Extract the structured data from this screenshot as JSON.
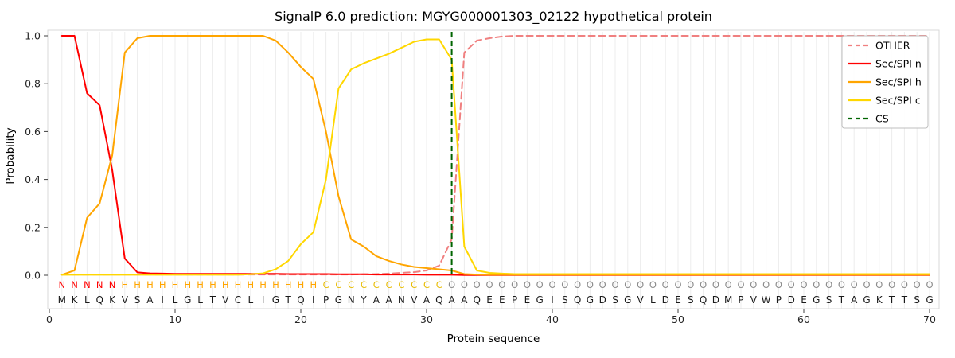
{
  "title": "SignalP 6.0 prediction: MGYG000001303_02122 hypothetical protein",
  "chart_data": {
    "type": "line",
    "xlabel": "Protein sequence",
    "ylabel": "Probability",
    "xticks": [
      0,
      10,
      20,
      30,
      40,
      50,
      60,
      70
    ],
    "yticks": [
      0,
      0.2,
      0.4,
      0.6,
      0.8,
      1.0
    ],
    "ylim": [
      0,
      1.05
    ],
    "x_start": 1,
    "cs_position": 32,
    "cs_color": "#006400",
    "sequence": "MKLQKVSAILGLTVCLIGTQIPGNYAANVAQAAQEEPEGISQGDSGVLDESQDMPVWPDEGSTAGKTTSG",
    "region_labels": "NNNNNHHHHHHHHHHHHHHHHCCCCCCCCCCOOOOOOOOOOOOOOOOOOOOOOOOOOOOOOOOOOOOOOO",
    "region_colors": {
      "N": "#ff0000",
      "H": "#ffa500",
      "C": "#e8bc00",
      "O": "#8c8c8c"
    },
    "series": [
      {
        "name": "OTHER",
        "color": "#f08080",
        "dash": true,
        "values": [
          0.003,
          0.003,
          0.003,
          0.003,
          0.003,
          0.003,
          0.003,
          0.003,
          0.003,
          0.003,
          0.003,
          0.003,
          0.003,
          0.003,
          0.003,
          0.003,
          0.003,
          0.003,
          0.003,
          0.003,
          0.003,
          0.003,
          0.003,
          0.003,
          0.004,
          0.005,
          0.007,
          0.01,
          0.013,
          0.02,
          0.04,
          0.15,
          0.93,
          0.98,
          0.99,
          0.997,
          1.0,
          1.0,
          1.0,
          1.0,
          1.0,
          1.0,
          1.0,
          1.0,
          1.0,
          1.0,
          1.0,
          1.0,
          1.0,
          1.0,
          1.0,
          1.0,
          1.0,
          1.0,
          1.0,
          1.0,
          1.0,
          1.0,
          1.0,
          1.0,
          1.0,
          1.0,
          1.0,
          1.0,
          1.0,
          1.0,
          1.0,
          1.0,
          1.0,
          1.0
        ]
      },
      {
        "name": "Sec/SPI n",
        "color": "#ff0000",
        "dash": false,
        "values": [
          1.0,
          1.0,
          0.76,
          0.71,
          0.44,
          0.07,
          0.012,
          0.008,
          0.007,
          0.006,
          0.006,
          0.006,
          0.006,
          0.006,
          0.006,
          0.006,
          0.006,
          0.006,
          0.005,
          0.005,
          0.005,
          0.005,
          0.004,
          0.004,
          0.004,
          0.003,
          0.003,
          0.003,
          0.003,
          0.002,
          0.002,
          0.002,
          0.001,
          0.001,
          0.001,
          0.001,
          0.001,
          0.001,
          0.001,
          0.001,
          0.001,
          0.001,
          0.001,
          0.001,
          0.001,
          0.001,
          0.001,
          0.001,
          0.001,
          0.001,
          0.001,
          0.001,
          0.001,
          0.001,
          0.001,
          0.001,
          0.001,
          0.001,
          0.001,
          0.001,
          0.001,
          0.001,
          0.001,
          0.001,
          0.001,
          0.001,
          0.001,
          0.001,
          0.001,
          0.001
        ]
      },
      {
        "name": "Sec/SPI h",
        "color": "#ffa500",
        "dash": false,
        "values": [
          0.002,
          0.02,
          0.24,
          0.3,
          0.5,
          0.93,
          0.99,
          1.0,
          1.0,
          1.0,
          1.0,
          1.0,
          1.0,
          1.0,
          1.0,
          1.0,
          1.0,
          0.98,
          0.93,
          0.87,
          0.82,
          0.6,
          0.33,
          0.15,
          0.12,
          0.08,
          0.06,
          0.045,
          0.035,
          0.03,
          0.025,
          0.02,
          0.005,
          0.003,
          0.002,
          0.002,
          0.002,
          0.002,
          0.002,
          0.002,
          0.002,
          0.002,
          0.002,
          0.002,
          0.002,
          0.002,
          0.002,
          0.002,
          0.002,
          0.002,
          0.002,
          0.002,
          0.002,
          0.002,
          0.002,
          0.002,
          0.002,
          0.002,
          0.002,
          0.002,
          0.002,
          0.002,
          0.002,
          0.002,
          0.002,
          0.002,
          0.002,
          0.002,
          0.002,
          0.002
        ]
      },
      {
        "name": "Sec/SPI c",
        "color": "#ffd700",
        "dash": false,
        "values": [
          0.002,
          0.002,
          0.002,
          0.002,
          0.002,
          0.002,
          0.002,
          0.002,
          0.002,
          0.002,
          0.002,
          0.002,
          0.002,
          0.002,
          0.002,
          0.004,
          0.008,
          0.025,
          0.06,
          0.13,
          0.18,
          0.4,
          0.78,
          0.86,
          0.885,
          0.905,
          0.925,
          0.95,
          0.975,
          0.985,
          0.985,
          0.9,
          0.12,
          0.02,
          0.01,
          0.007,
          0.005,
          0.005,
          0.005,
          0.005,
          0.005,
          0.005,
          0.005,
          0.005,
          0.005,
          0.005,
          0.005,
          0.005,
          0.005,
          0.005,
          0.005,
          0.005,
          0.005,
          0.005,
          0.005,
          0.005,
          0.005,
          0.005,
          0.005,
          0.005,
          0.005,
          0.005,
          0.005,
          0.005,
          0.005,
          0.005,
          0.005,
          0.005,
          0.005,
          0.005
        ]
      }
    ],
    "legend": [
      {
        "label": "OTHER",
        "color": "#f08080",
        "dash": true
      },
      {
        "label": "Sec/SPI n",
        "color": "#ff0000",
        "dash": false
      },
      {
        "label": "Sec/SPI h",
        "color": "#ffa500",
        "dash": false
      },
      {
        "label": "Sec/SPI c",
        "color": "#ffd700",
        "dash": false
      },
      {
        "label": "CS",
        "color": "#006400",
        "dash": true
      }
    ],
    "style": {
      "grid_color": "#ececec",
      "frame_color": "#d9d9d9"
    }
  }
}
